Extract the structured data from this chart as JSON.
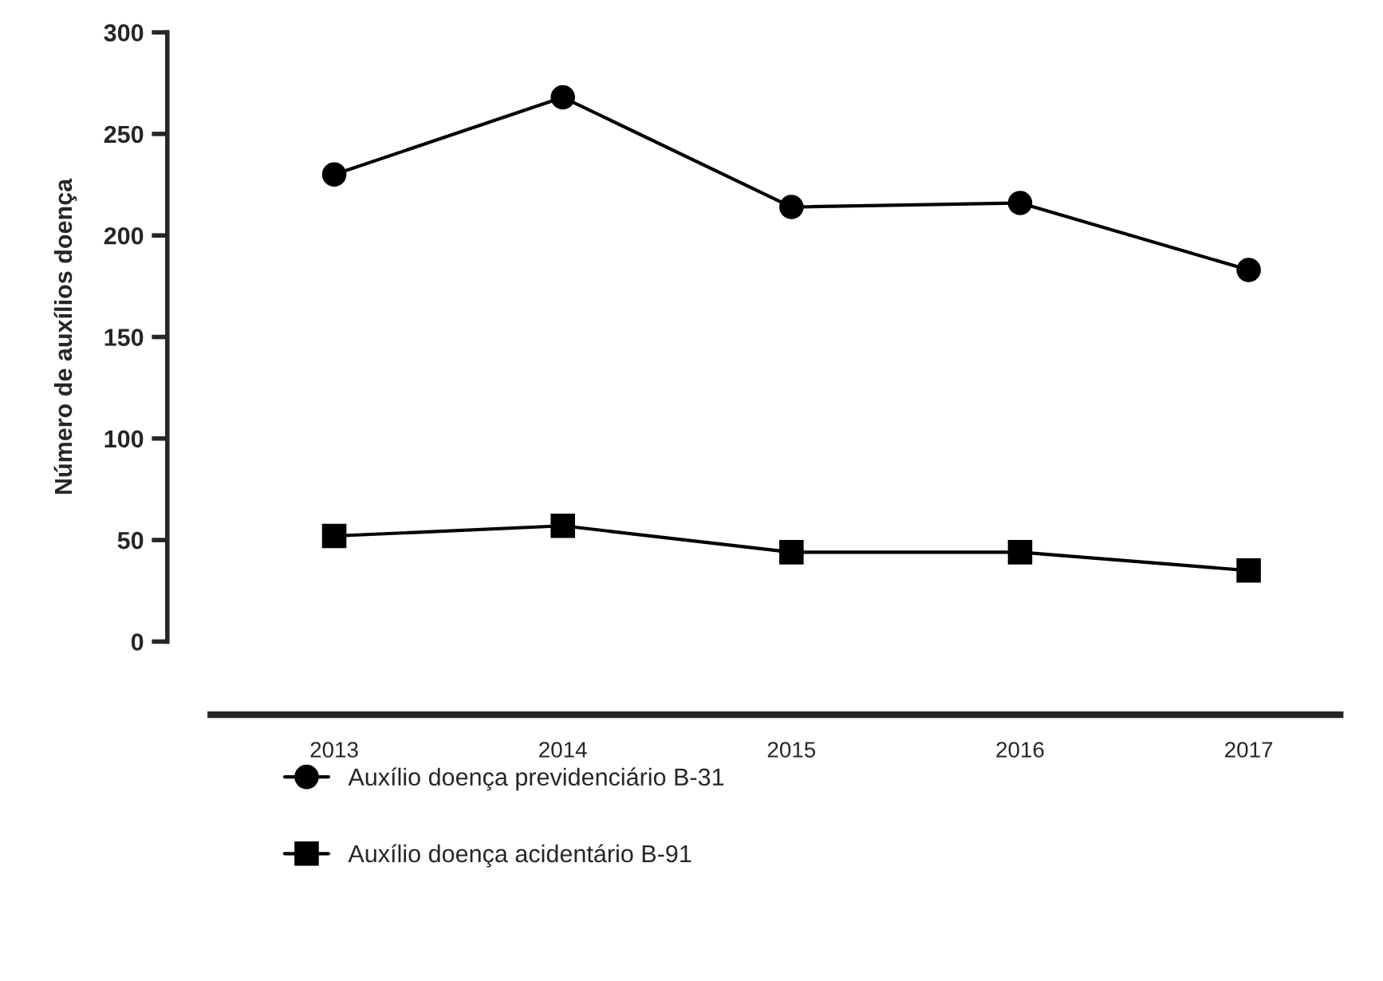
{
  "chart_data": {
    "type": "line",
    "ylabel": "Número de auxílios doença",
    "categories": [
      "2013",
      "2014",
      "2015",
      "2016",
      "2017"
    ],
    "series": [
      {
        "name": "Auxílio doença previdenciário B-31",
        "color": "#000000",
        "marker": "circle",
        "values": [
          230,
          268,
          214,
          216,
          183
        ]
      },
      {
        "name": "Auxílio doença acidentário B-91",
        "color": "#000000",
        "marker": "square",
        "values": [
          52,
          57,
          44,
          44,
          35
        ]
      }
    ],
    "ylim": [
      0,
      300
    ],
    "yticks": [
      0,
      50,
      100,
      150,
      200,
      250,
      300
    ],
    "grid": false,
    "legend": "bottom",
    "line_style": "solid"
  }
}
